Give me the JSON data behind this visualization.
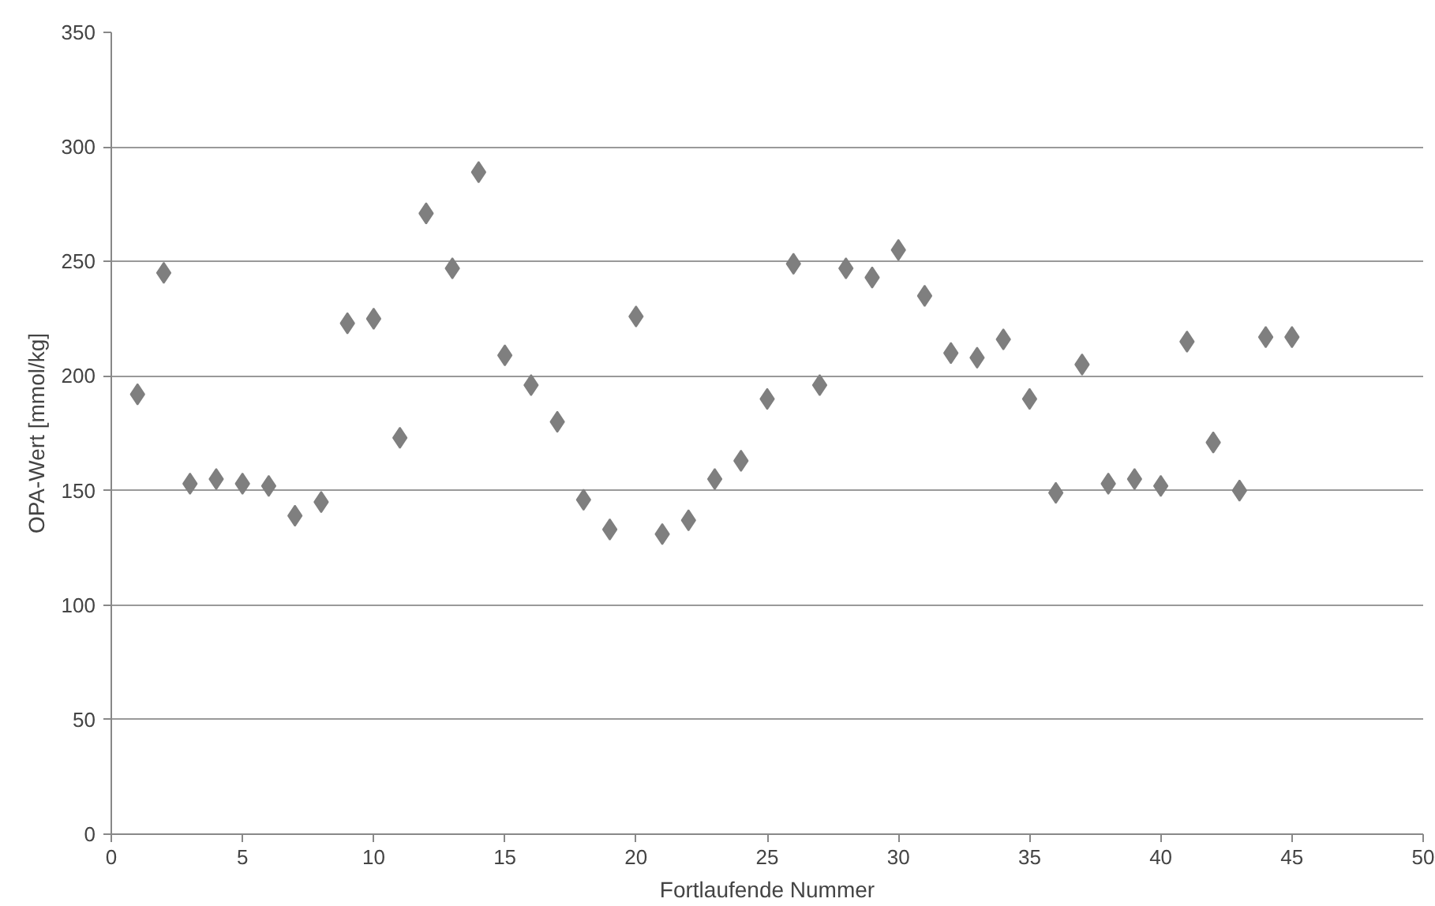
{
  "chart_data": {
    "type": "scatter",
    "xlabel": "Fortlaufende Nummer",
    "ylabel": "OPA-Wert [mmol/kg]",
    "x": [
      1,
      2,
      3,
      4,
      5,
      6,
      7,
      8,
      9,
      10,
      11,
      12,
      13,
      14,
      15,
      16,
      17,
      18,
      19,
      20,
      21,
      22,
      23,
      24,
      25,
      26,
      27,
      28,
      29,
      30,
      31,
      32,
      33,
      34,
      35,
      36,
      37,
      38,
      39,
      40,
      41,
      42,
      43,
      44,
      45
    ],
    "series": [
      {
        "color": "#7f7f7f",
        "values": [
          192,
          245,
          153,
          155,
          153,
          152,
          139,
          145,
          223,
          225,
          173,
          271,
          247,
          289,
          209,
          196,
          180,
          146,
          133,
          226,
          131,
          137,
          155,
          163,
          190,
          249,
          196,
          247,
          243,
          255,
          235,
          210,
          208,
          216,
          190,
          149,
          205,
          153,
          155,
          152,
          215,
          171,
          150,
          217,
          217
        ]
      }
    ],
    "xlim": [
      0,
      50
    ],
    "xticks": [
      0,
      5,
      10,
      15,
      20,
      25,
      30,
      35,
      40,
      45,
      50
    ],
    "ylim": [
      0,
      350
    ],
    "yticks": [
      0,
      50,
      100,
      150,
      200,
      250,
      300,
      350
    ],
    "grid": "y",
    "marker": "diamond"
  }
}
